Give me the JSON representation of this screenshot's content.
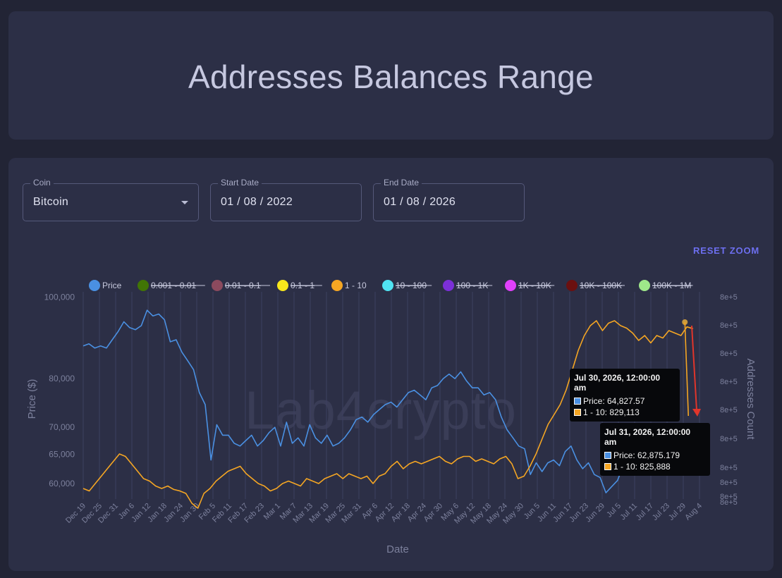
{
  "page": {
    "title": "Addresses Balances Range"
  },
  "controls": {
    "coin": {
      "label": "Coin",
      "value": "Bitcoin"
    },
    "start_date": {
      "label": "Start Date",
      "value": "01 / 08 / 2022"
    },
    "end_date": {
      "label": "End Date",
      "value": "01 / 08 / 2026"
    },
    "reset_zoom_label": "RESET ZOOM"
  },
  "watermark": "Lab4crypto",
  "tooltips": [
    {
      "title": "Jul 30, 2026, 12:00:00 am",
      "rows": [
        {
          "series": "Price",
          "text": "Price: 64,827.57",
          "color": "#4a90e2"
        },
        {
          "series": "1 - 10",
          "text": "1 - 10: 829,113",
          "color": "#f5a623"
        }
      ]
    },
    {
      "title": "Jul 31, 2026, 12:00:00 am",
      "rows": [
        {
          "series": "Price",
          "text": "Price: 62,875.179",
          "color": "#4a90e2"
        },
        {
          "series": "1 - 10",
          "text": "1 - 10: 825,888",
          "color": "#f5a623"
        }
      ]
    }
  ],
  "chart_data": {
    "type": "line",
    "xlabel": "Date",
    "ylabel": "Price ($)",
    "y2label": "Addresses Count",
    "y_ticks": [
      "100,000",
      "80,000",
      "70,000",
      "65,000",
      "60,000"
    ],
    "y_tick_values": [
      100000,
      80000,
      70000,
      65000,
      60000
    ],
    "y2_ticks": [
      "8e+5",
      "8e+5",
      "8e+5",
      "8e+5",
      "8e+5",
      "8e+5",
      "8e+5",
      "8e+5",
      "8e+5",
      "8e+5"
    ],
    "x_ticks": [
      "Dec 19",
      "Dec 25",
      "Dec 31",
      "Jan 6",
      "Jan 12",
      "Jan 18",
      "Jan 24",
      "Jan 30",
      "Feb 5",
      "Feb 11",
      "Feb 17",
      "Feb 23",
      "Mar 1",
      "Mar 7",
      "Mar 13",
      "Mar 19",
      "Mar 25",
      "Mar 31",
      "Apr 6",
      "Apr 12",
      "Apr 18",
      "Apr 24",
      "Apr 30",
      "May 6",
      "May 12",
      "May 18",
      "May 24",
      "May 30",
      "Jun 5",
      "Jun 11",
      "Jun 17",
      "Jun 23",
      "Jun 29",
      "Jul 5",
      "Jul 11",
      "Jul 17",
      "Jul 23",
      "Jul 29",
      "Aug 4"
    ],
    "legend_position": "top",
    "grid": true,
    "y_scale": "log",
    "legend": [
      {
        "name": "Price",
        "color": "#4a90e2",
        "hidden": false
      },
      {
        "name": "0.001 - 0.01",
        "color": "#417505",
        "hidden": true
      },
      {
        "name": "0.01 - 0.1",
        "color": "#8b4a5e",
        "hidden": true
      },
      {
        "name": "0.1 - 1",
        "color": "#f8e71c",
        "hidden": true
      },
      {
        "name": "1 - 10",
        "color": "#f5a623",
        "hidden": false
      },
      {
        "name": "10 - 100",
        "color": "#50e3f2",
        "hidden": true
      },
      {
        "name": "100 - 1K",
        "color": "#7b2fd8",
        "hidden": true
      },
      {
        "name": "1K - 10K",
        "color": "#e040fb",
        "hidden": true
      },
      {
        "name": "10K - 100K",
        "color": "#6b1010",
        "hidden": true
      },
      {
        "name": "100K - 1M",
        "color": "#9fe88a",
        "hidden": true
      }
    ],
    "series": [
      {
        "name": "Price",
        "axis": "left",
        "values": [
          87500,
          88000,
          87000,
          87500,
          87000,
          89000,
          91000,
          93500,
          92000,
          91500,
          92500,
          96500,
          95000,
          95500,
          94000,
          88500,
          89000,
          86000,
          84000,
          82000,
          77000,
          74500,
          64000,
          70500,
          68500,
          68500,
          67000,
          66500,
          67500,
          68500,
          66500,
          67500,
          69000,
          70000,
          66500,
          71000,
          67000,
          68000,
          66500,
          70500,
          68000,
          67000,
          68500,
          66500,
          67000,
          68000,
          69500,
          71500,
          72000,
          71000,
          72500,
          73500,
          74500,
          75000,
          74000,
          75500,
          77000,
          77500,
          76500,
          75500,
          78000,
          78500,
          80000,
          81000,
          80000,
          81500,
          79500,
          78000,
          78000,
          76500,
          77000,
          75500,
          72000,
          69500,
          68000,
          66500,
          66000,
          61500,
          63500,
          62000,
          63500,
          64000,
          63000,
          65500,
          66500,
          64000,
          62500,
          63500,
          61500,
          61000,
          58500,
          59500,
          60500,
          63000,
          62500,
          63500,
          65000,
          66000,
          63500,
          64000,
          65500,
          63000,
          64000,
          63000,
          64827.57,
          62875.179
        ],
        "x_index_span": [
          0,
          38
        ]
      },
      {
        "name": "1 - 10",
        "axis": "right",
        "values": [
          62000,
          61500,
          63000,
          64500,
          66000,
          67500,
          69000,
          68500,
          67000,
          65500,
          64000,
          63500,
          62500,
          62000,
          62500,
          61800,
          61500,
          61000,
          59000,
          58000,
          61000,
          62000,
          63500,
          64500,
          65500,
          66000,
          66500,
          65000,
          64000,
          63000,
          62500,
          61500,
          62000,
          63000,
          63500,
          63000,
          62500,
          64000,
          63500,
          63000,
          64000,
          64500,
          65000,
          64000,
          65000,
          64500,
          64000,
          64500,
          63000,
          64500,
          65000,
          66500,
          67500,
          66000,
          67000,
          67500,
          67000,
          67500,
          68000,
          68500,
          67500,
          67000,
          68000,
          68500,
          68500,
          67500,
          68000,
          67500,
          67000,
          68000,
          68500,
          67000,
          64000,
          64500,
          66500,
          69000,
          72000,
          75000,
          77000,
          79000,
          82000,
          86000,
          90000,
          93000,
          95000,
          96000,
          94000,
          95500,
          96000,
          95000,
          94500,
          93500,
          92000,
          93000,
          91500,
          93000,
          92500,
          94000,
          93500,
          93000,
          829113,
          825888
        ],
        "x_index_span": [
          0,
          38
        ]
      }
    ]
  }
}
